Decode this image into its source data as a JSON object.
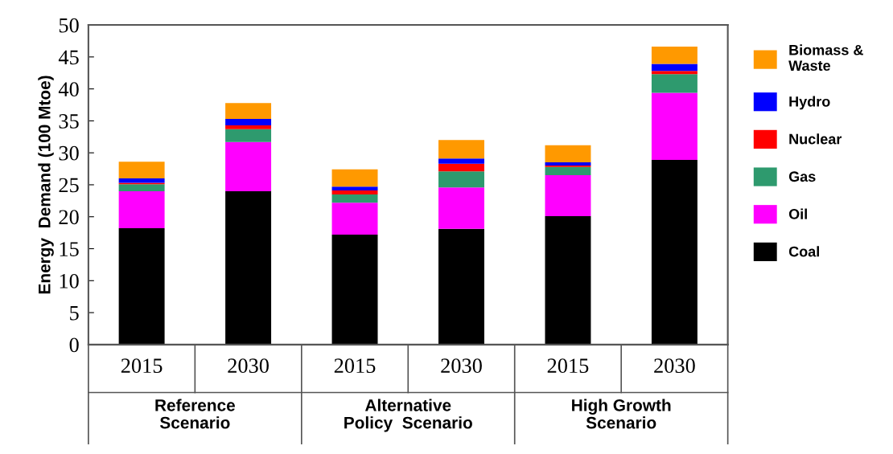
{
  "chart_data": {
    "type": "bar",
    "stacked": true,
    "ylabel": "Energy  Demand (100 Mtoe)",
    "categories": [
      "2015",
      "2030",
      "2015",
      "2030",
      "2015",
      "2030"
    ],
    "annotations": [
      "Reference\nScenario",
      "Alternative\nPolicy  Scenario",
      "High Growth\nScenario"
    ],
    "series": [
      {
        "name": "Coal",
        "color": "#000000",
        "values": [
          18.2,
          24.0,
          17.2,
          18.1,
          20.1,
          28.9
        ]
      },
      {
        "name": "Oil",
        "color": "#ff00ff",
        "values": [
          5.8,
          7.7,
          5.0,
          6.5,
          6.4,
          10.5
        ]
      },
      {
        "name": "Gas",
        "color": "#2e9a6e",
        "values": [
          1.1,
          2.0,
          1.3,
          2.5,
          1.3,
          2.9
        ]
      },
      {
        "name": "Nuclear",
        "color": "#ff0000",
        "values": [
          0.2,
          0.6,
          0.6,
          1.2,
          0.2,
          0.5
        ]
      },
      {
        "name": "Hydro",
        "color": "#0000ff",
        "values": [
          0.7,
          1.0,
          0.6,
          0.8,
          0.5,
          1.1
        ]
      },
      {
        "name": "Biomass &\nWaste",
        "color": "#ff9900",
        "values": [
          2.6,
          2.5,
          2.7,
          2.9,
          2.7,
          2.7
        ]
      }
    ],
    "ylim": [
      0,
      50
    ],
    "yticks": [
      0,
      5,
      10,
      15,
      20,
      25,
      30,
      35,
      40,
      45,
      50
    ],
    "grid": false,
    "legend": "right"
  }
}
